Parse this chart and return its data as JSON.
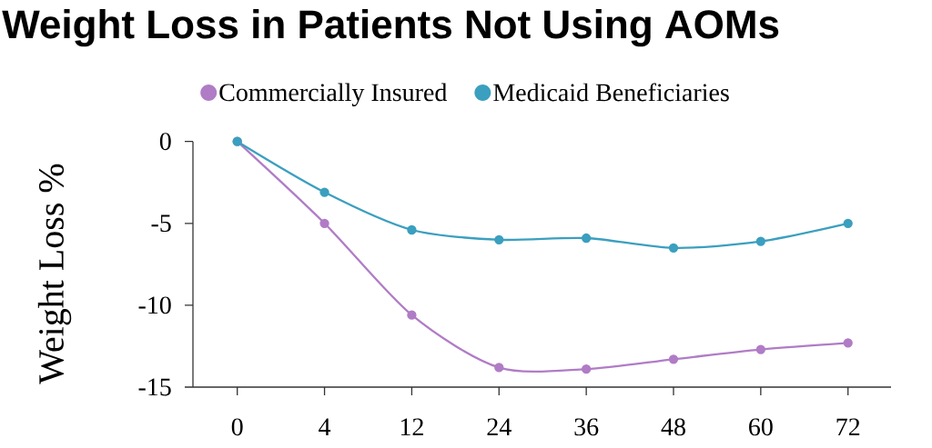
{
  "chart_data": {
    "type": "line",
    "title": "Weight Loss in Patients Not Using AOMs",
    "ylabel": "Weight Loss %",
    "categories": [
      "0",
      "4",
      "12",
      "24",
      "36",
      "48",
      "60",
      "72"
    ],
    "series": [
      {
        "name": "Commercially Insured",
        "color": "#b07cc6",
        "values": [
          0,
          -5.0,
          -10.6,
          -13.8,
          -13.9,
          -13.3,
          -12.7,
          -12.3
        ]
      },
      {
        "name": "Medicaid Beneficiaries",
        "color": "#3b9fbf",
        "values": [
          0,
          -3.1,
          -5.4,
          -6.0,
          -5.9,
          -6.5,
          -6.1,
          -5.0
        ]
      }
    ],
    "ylim": [
      -15,
      0
    ],
    "yticks": [
      0,
      -5,
      -10,
      -15
    ],
    "legend": "top",
    "marker": "circle",
    "line_style": "solid"
  }
}
